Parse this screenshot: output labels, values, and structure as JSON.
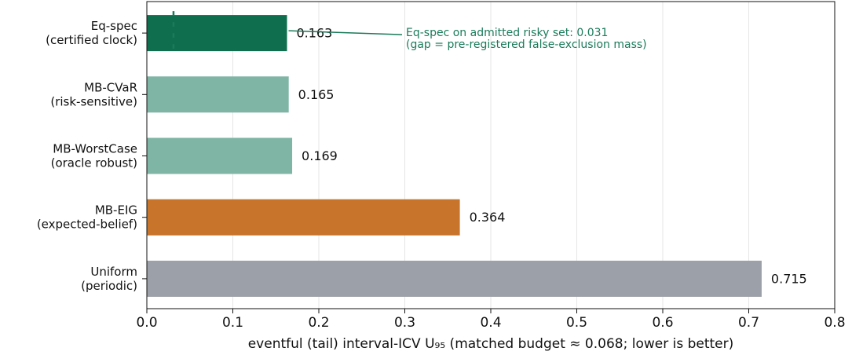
{
  "chart_data": {
    "type": "bar",
    "orientation": "horizontal",
    "categories": [
      [
        "Eq-spec",
        "(certified clock)"
      ],
      [
        "MB-CVaR",
        "(risk-sensitive)"
      ],
      [
        "MB-WorstCase",
        "(oracle robust)"
      ],
      [
        "MB-EIG",
        "(expected-belief)"
      ],
      [
        "Uniform",
        "(periodic)"
      ]
    ],
    "values": [
      0.163,
      0.165,
      0.169,
      0.364,
      0.715
    ],
    "colors": [
      "#0e6e4e",
      "#7fb5a5",
      "#7fb5a5",
      "#c8742b",
      "#9ca0a8"
    ],
    "xlim": [
      0,
      0.8
    ],
    "xticks": [
      {
        "value": 0,
        "label": "0.0"
      },
      0.1,
      0.2,
      0.3,
      0.4,
      0.5,
      0.6,
      0.7,
      0.8
    ],
    "xlabel": "eventful (tail) interval-ICV  U₉₅   (matched budget ≈ 0.068; lower is better)",
    "grid": true,
    "annotation": {
      "lines": [
        "Eq-spec on admitted risky set: 0.031",
        "(gap = pre-registered false-exclusion mass)"
      ],
      "value": 0.031,
      "color": "#1a7a5a"
    }
  }
}
